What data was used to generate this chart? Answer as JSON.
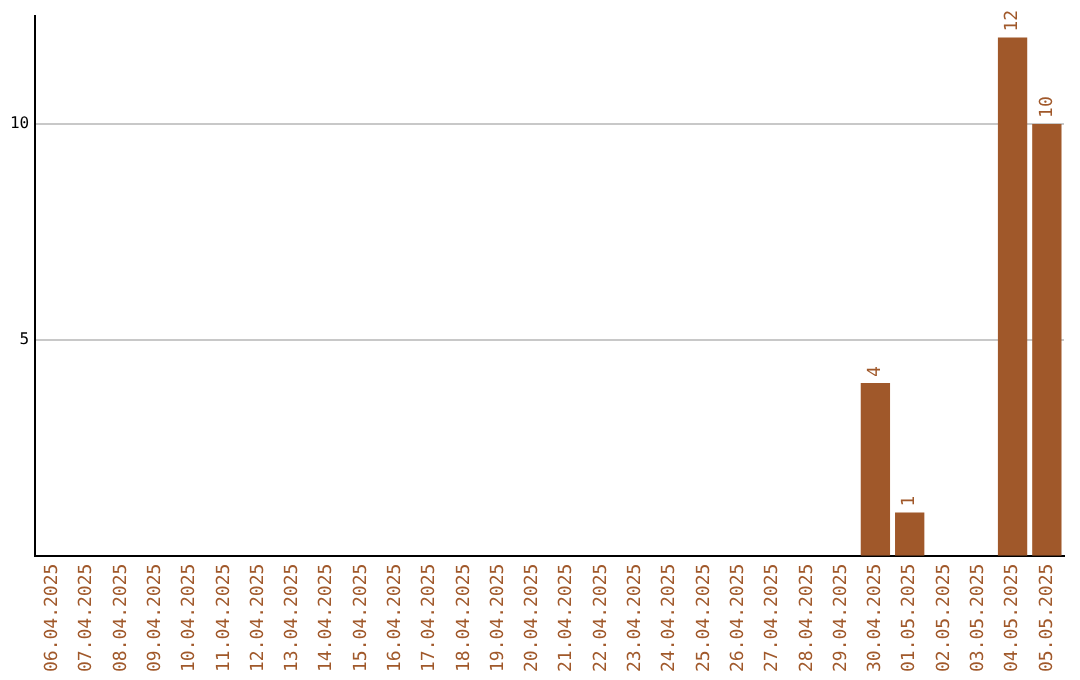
{
  "chart_data": {
    "type": "bar",
    "categories": [
      "06.04.2025",
      "07.04.2025",
      "08.04.2025",
      "09.04.2025",
      "10.04.2025",
      "11.04.2025",
      "12.04.2025",
      "13.04.2025",
      "14.04.2025",
      "15.04.2025",
      "16.04.2025",
      "17.04.2025",
      "18.04.2025",
      "19.04.2025",
      "20.04.2025",
      "21.04.2025",
      "22.04.2025",
      "23.04.2025",
      "24.04.2025",
      "25.04.2025",
      "26.04.2025",
      "27.04.2025",
      "28.04.2025",
      "29.04.2025",
      "30.04.2025",
      "01.05.2025",
      "02.05.2025",
      "03.05.2025",
      "04.05.2025",
      "05.05.2025"
    ],
    "values": [
      0,
      0,
      0,
      0,
      0,
      0,
      0,
      0,
      0,
      0,
      0,
      0,
      0,
      0,
      0,
      0,
      0,
      0,
      0,
      0,
      0,
      0,
      0,
      0,
      4,
      1,
      0,
      0,
      12,
      10
    ],
    "value_labels": [
      null,
      null,
      null,
      null,
      null,
      null,
      null,
      null,
      null,
      null,
      null,
      null,
      null,
      null,
      null,
      null,
      null,
      null,
      null,
      null,
      null,
      null,
      null,
      null,
      "4",
      "1",
      null,
      null,
      "12",
      "10"
    ],
    "color": "#a0582a",
    "ylim": [
      0,
      12.5
    ],
    "yticks": [
      5,
      10
    ],
    "grid": "y",
    "legend": false
  }
}
